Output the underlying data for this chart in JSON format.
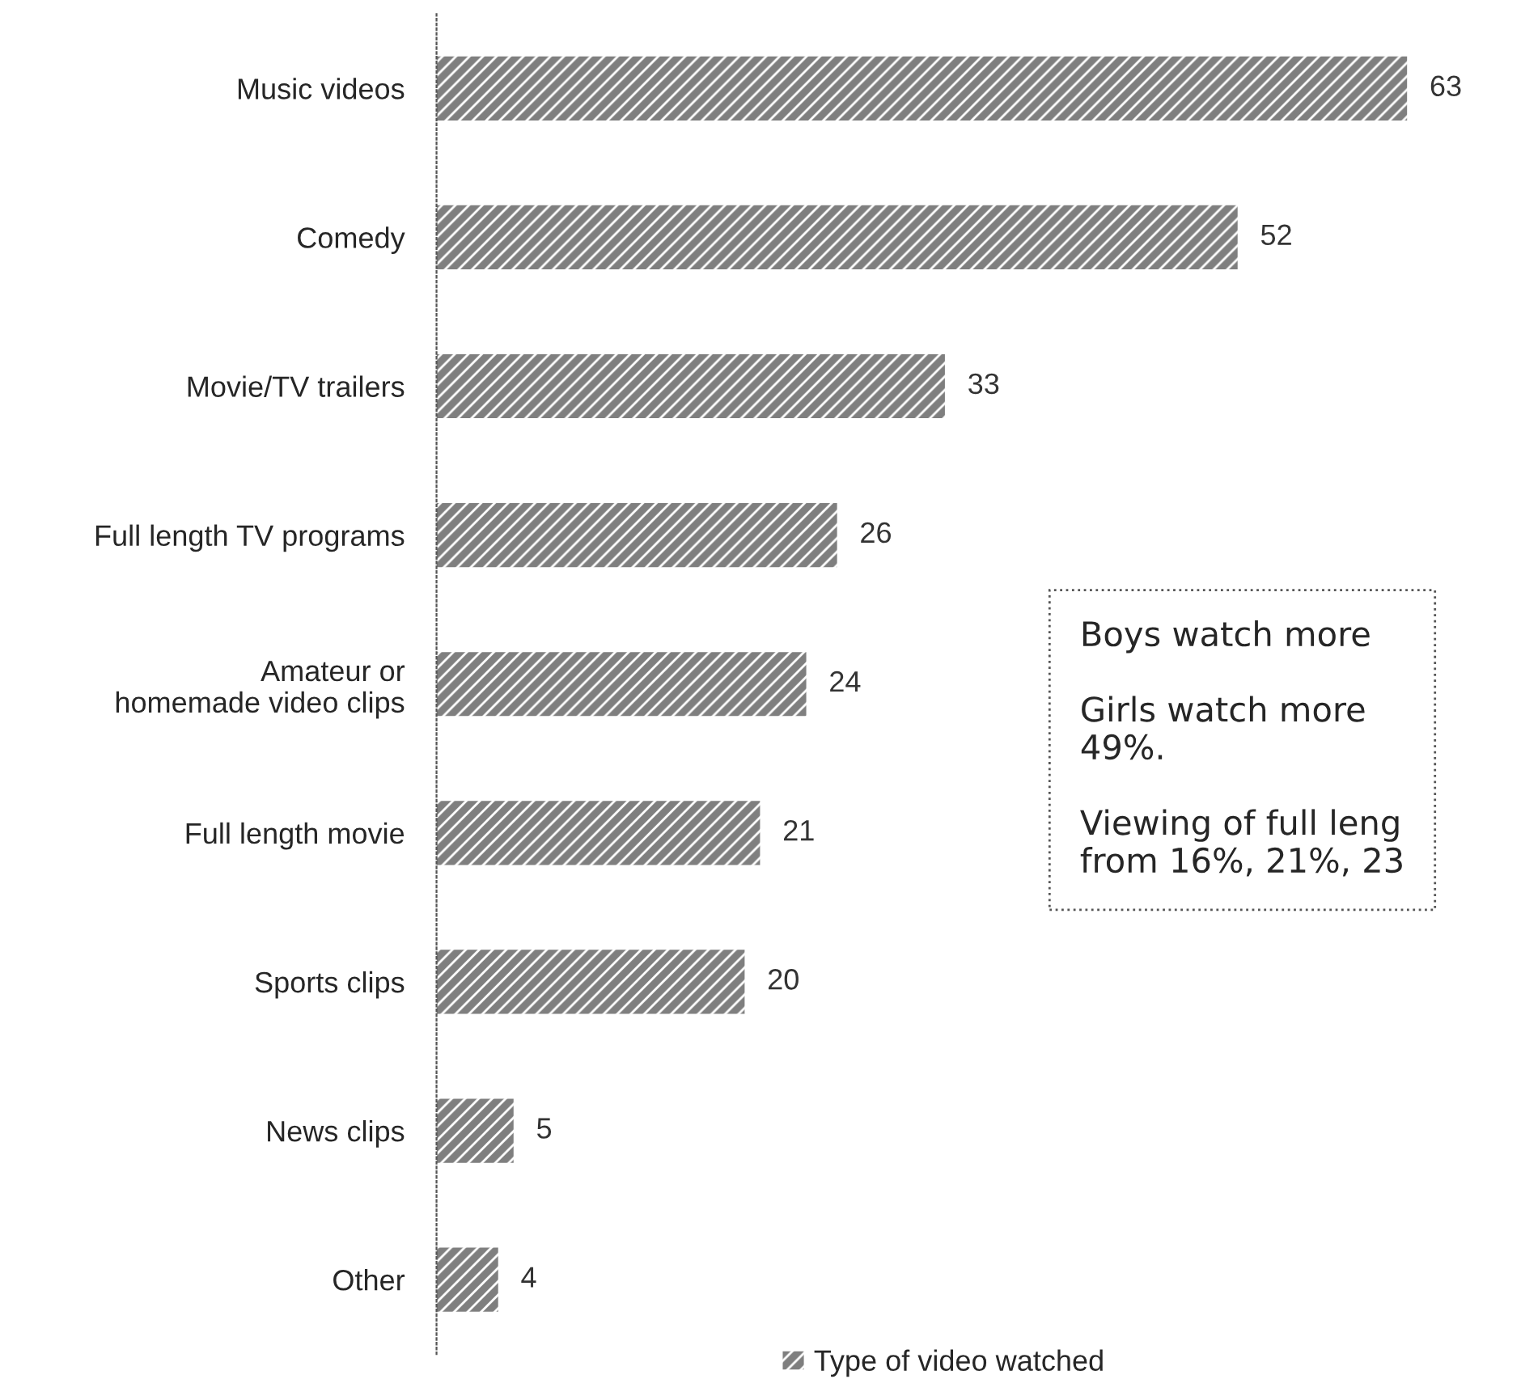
{
  "chart_data": {
    "type": "bar",
    "orientation": "horizontal",
    "categories": [
      "Music videos",
      "Comedy",
      "Movie/TV trailers",
      "Full length TV programs",
      "Amateur or\nhomemade video clips",
      "Full length movie",
      "Sports clips",
      "News clips",
      "Other"
    ],
    "series": [
      {
        "name": "Type of video watched",
        "color": "#7f7f7f",
        "values": [
          63,
          52,
          33,
          26,
          24,
          21,
          20,
          5,
          4
        ]
      }
    ],
    "data_labels": true,
    "legend": "bottom",
    "annotations": [
      "Boys watch more",
      "Girls watch more\n49%.",
      "Viewing of full leng\nfrom 16%, 21%, 23"
    ]
  }
}
